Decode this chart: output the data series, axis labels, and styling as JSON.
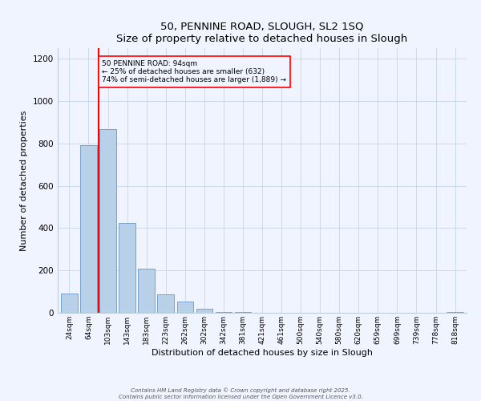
{
  "title": "50, PENNINE ROAD, SLOUGH, SL2 1SQ",
  "subtitle": "Size of property relative to detached houses in Slough",
  "xlabel": "Distribution of detached houses by size in Slough",
  "ylabel": "Number of detached properties",
  "bar_labels": [
    "24sqm",
    "64sqm",
    "103sqm",
    "143sqm",
    "183sqm",
    "223sqm",
    "262sqm",
    "302sqm",
    "342sqm",
    "381sqm",
    "421sqm",
    "461sqm",
    "500sqm",
    "540sqm",
    "580sqm",
    "620sqm",
    "659sqm",
    "699sqm",
    "739sqm",
    "778sqm",
    "818sqm"
  ],
  "bar_values": [
    90,
    793,
    868,
    425,
    210,
    88,
    52,
    20,
    5,
    2,
    0,
    0,
    0,
    0,
    0,
    0,
    0,
    0,
    0,
    0,
    2
  ],
  "bar_color": "#b8d0e8",
  "bar_edge_color": "#6699cc",
  "ylim": [
    0,
    1250
  ],
  "yticks": [
    0,
    200,
    400,
    600,
    800,
    1000,
    1200
  ],
  "vline_x_index": 1.5,
  "annotation_title": "50 PENNINE ROAD: 94sqm",
  "annotation_line1": "← 25% of detached houses are smaller (632)",
  "annotation_line2": "74% of semi-detached houses are larger (1,889) →",
  "footer1": "Contains HM Land Registry data © Crown copyright and database right 2025.",
  "footer2": "Contains public sector information licensed under the Open Government Licence v3.0.",
  "background_color": "#f0f4ff",
  "grid_color": "#c8d4e8"
}
